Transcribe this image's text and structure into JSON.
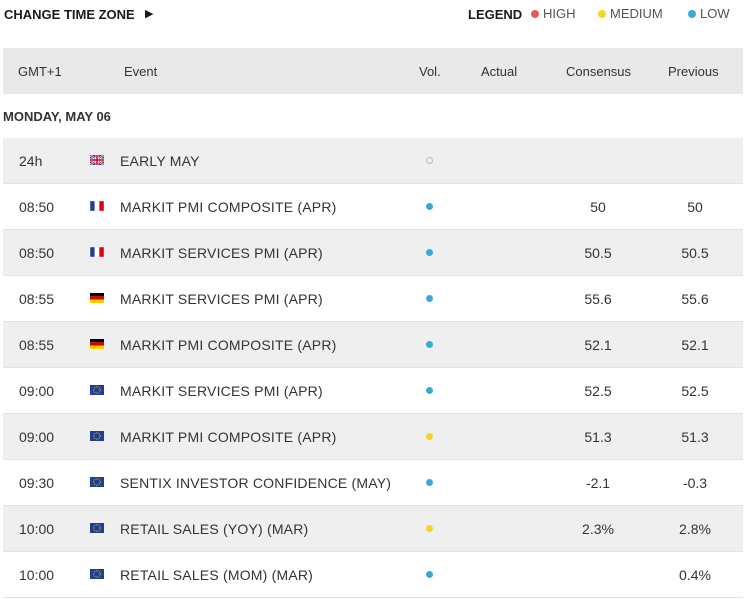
{
  "topbar": {
    "change_tz_label": "CHANGE TIME ZONE",
    "legend_label": "LEGEND",
    "legend": [
      {
        "label": "HIGH",
        "color": "#e05a5a"
      },
      {
        "label": "MEDIUM",
        "color": "#f4d51f"
      },
      {
        "label": "LOW",
        "color": "#3ba9d6"
      }
    ]
  },
  "table": {
    "columns": {
      "time": "GMT+1",
      "event": "Event",
      "volatility": "Vol.",
      "actual": "Actual",
      "consensus": "Consensus",
      "previous": "Previous"
    },
    "day_label": "MONDAY, MAY 06",
    "rows": [
      {
        "time": "24h",
        "flag": "uk-flag-icon",
        "event": "EARLY MAY",
        "vol": "none",
        "actual": "",
        "consensus": "",
        "previous": ""
      },
      {
        "time": "08:50",
        "flag": "france-flag-icon",
        "event": "MARKIT PMI COMPOSITE (APR)",
        "vol": "low",
        "actual": "",
        "consensus": "50",
        "previous": "50"
      },
      {
        "time": "08:50",
        "flag": "france-flag-icon",
        "event": "MARKIT SERVICES PMI (APR)",
        "vol": "low",
        "actual": "",
        "consensus": "50.5",
        "previous": "50.5"
      },
      {
        "time": "08:55",
        "flag": "germany-flag-icon",
        "event": "MARKIT SERVICES PMI (APR)",
        "vol": "low",
        "actual": "",
        "consensus": "55.6",
        "previous": "55.6"
      },
      {
        "time": "08:55",
        "flag": "germany-flag-icon",
        "event": "MARKIT PMI COMPOSITE (APR)",
        "vol": "low",
        "actual": "",
        "consensus": "52.1",
        "previous": "52.1"
      },
      {
        "time": "09:00",
        "flag": "eu-flag-icon",
        "event": "MARKIT SERVICES PMI (APR)",
        "vol": "low",
        "actual": "",
        "consensus": "52.5",
        "previous": "52.5"
      },
      {
        "time": "09:00",
        "flag": "eu-flag-icon",
        "event": "MARKIT PMI COMPOSITE (APR)",
        "vol": "medium",
        "actual": "",
        "consensus": "51.3",
        "previous": "51.3"
      },
      {
        "time": "09:30",
        "flag": "eu-flag-icon",
        "event": "SENTIX INVESTOR CONFIDENCE (MAY)",
        "vol": "low",
        "actual": "",
        "consensus": "-2.1",
        "previous": "-0.3"
      },
      {
        "time": "10:00",
        "flag": "eu-flag-icon",
        "event": "RETAIL SALES (YOY) (MAR)",
        "vol": "medium",
        "actual": "",
        "consensus": "2.3%",
        "previous": "2.8%"
      },
      {
        "time": "10:00",
        "flag": "eu-flag-icon",
        "event": "RETAIL SALES (MOM) (MAR)",
        "vol": "low",
        "actual": "",
        "consensus": "",
        "previous": "0.4%"
      }
    ]
  }
}
